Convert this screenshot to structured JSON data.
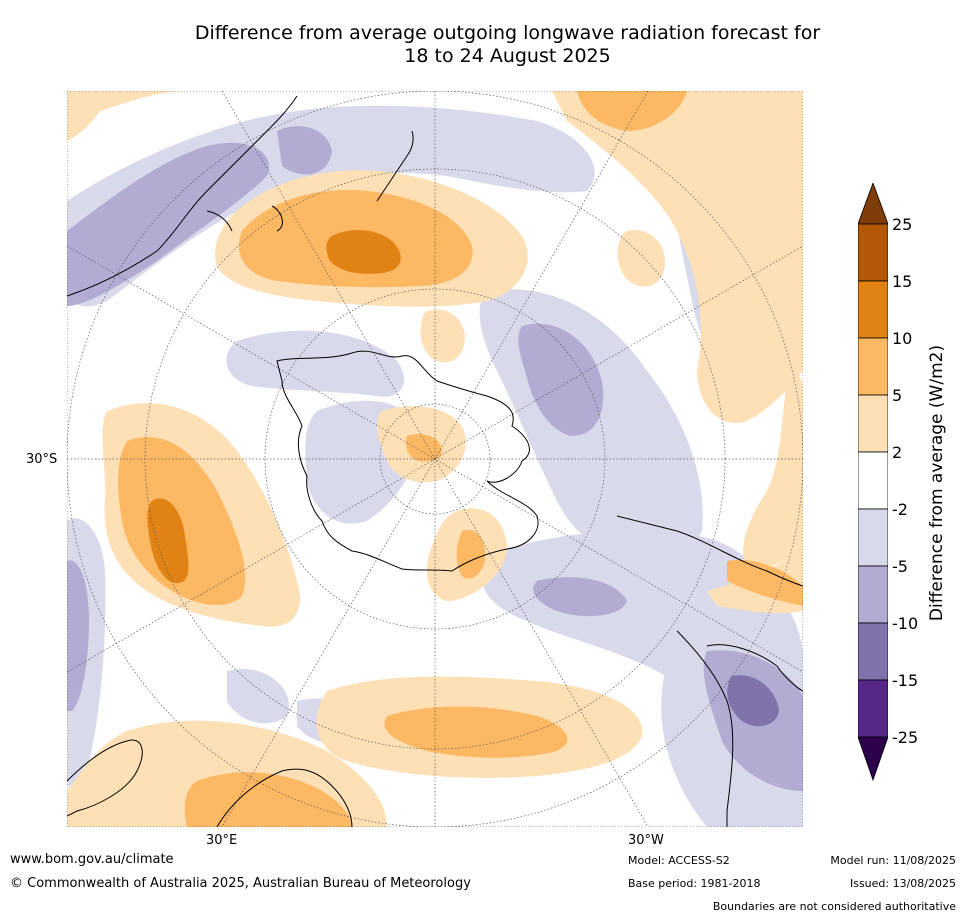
{
  "title": {
    "line1": "Difference from average outgoing longwave radiation forecast for",
    "line2": "18 to 24 August 2025"
  },
  "axis_labels": {
    "lat": "30°S",
    "lon_east": "30°E",
    "lon_west": "30°W"
  },
  "colorbar": {
    "title": "Difference from average (W/m2)",
    "ticks": [
      "25",
      "15",
      "10",
      "5",
      "2",
      "-2",
      "-5",
      "-10",
      "-15",
      "-25"
    ],
    "colors": [
      "#7f3b08",
      "#b35806",
      "#e08214",
      "#fdb863",
      "#fee0b6",
      "#ffffff",
      "#d8daeb",
      "#b2abd2",
      "#8073ac",
      "#542788",
      "#2d004b"
    ]
  },
  "footer": {
    "url": "www.bom.gov.au/climate",
    "copyright": "© Commonwealth of Australia 2025, Australian Bureau of Meteorology",
    "model": "Model: ACCESS-S2",
    "base_period": "Base period: 1981-2018",
    "model_run": "Model run: 11/08/2025",
    "issued": "Issued: 13/08/2025",
    "disclaimer": "Boundaries are not considered authoritative"
  }
}
